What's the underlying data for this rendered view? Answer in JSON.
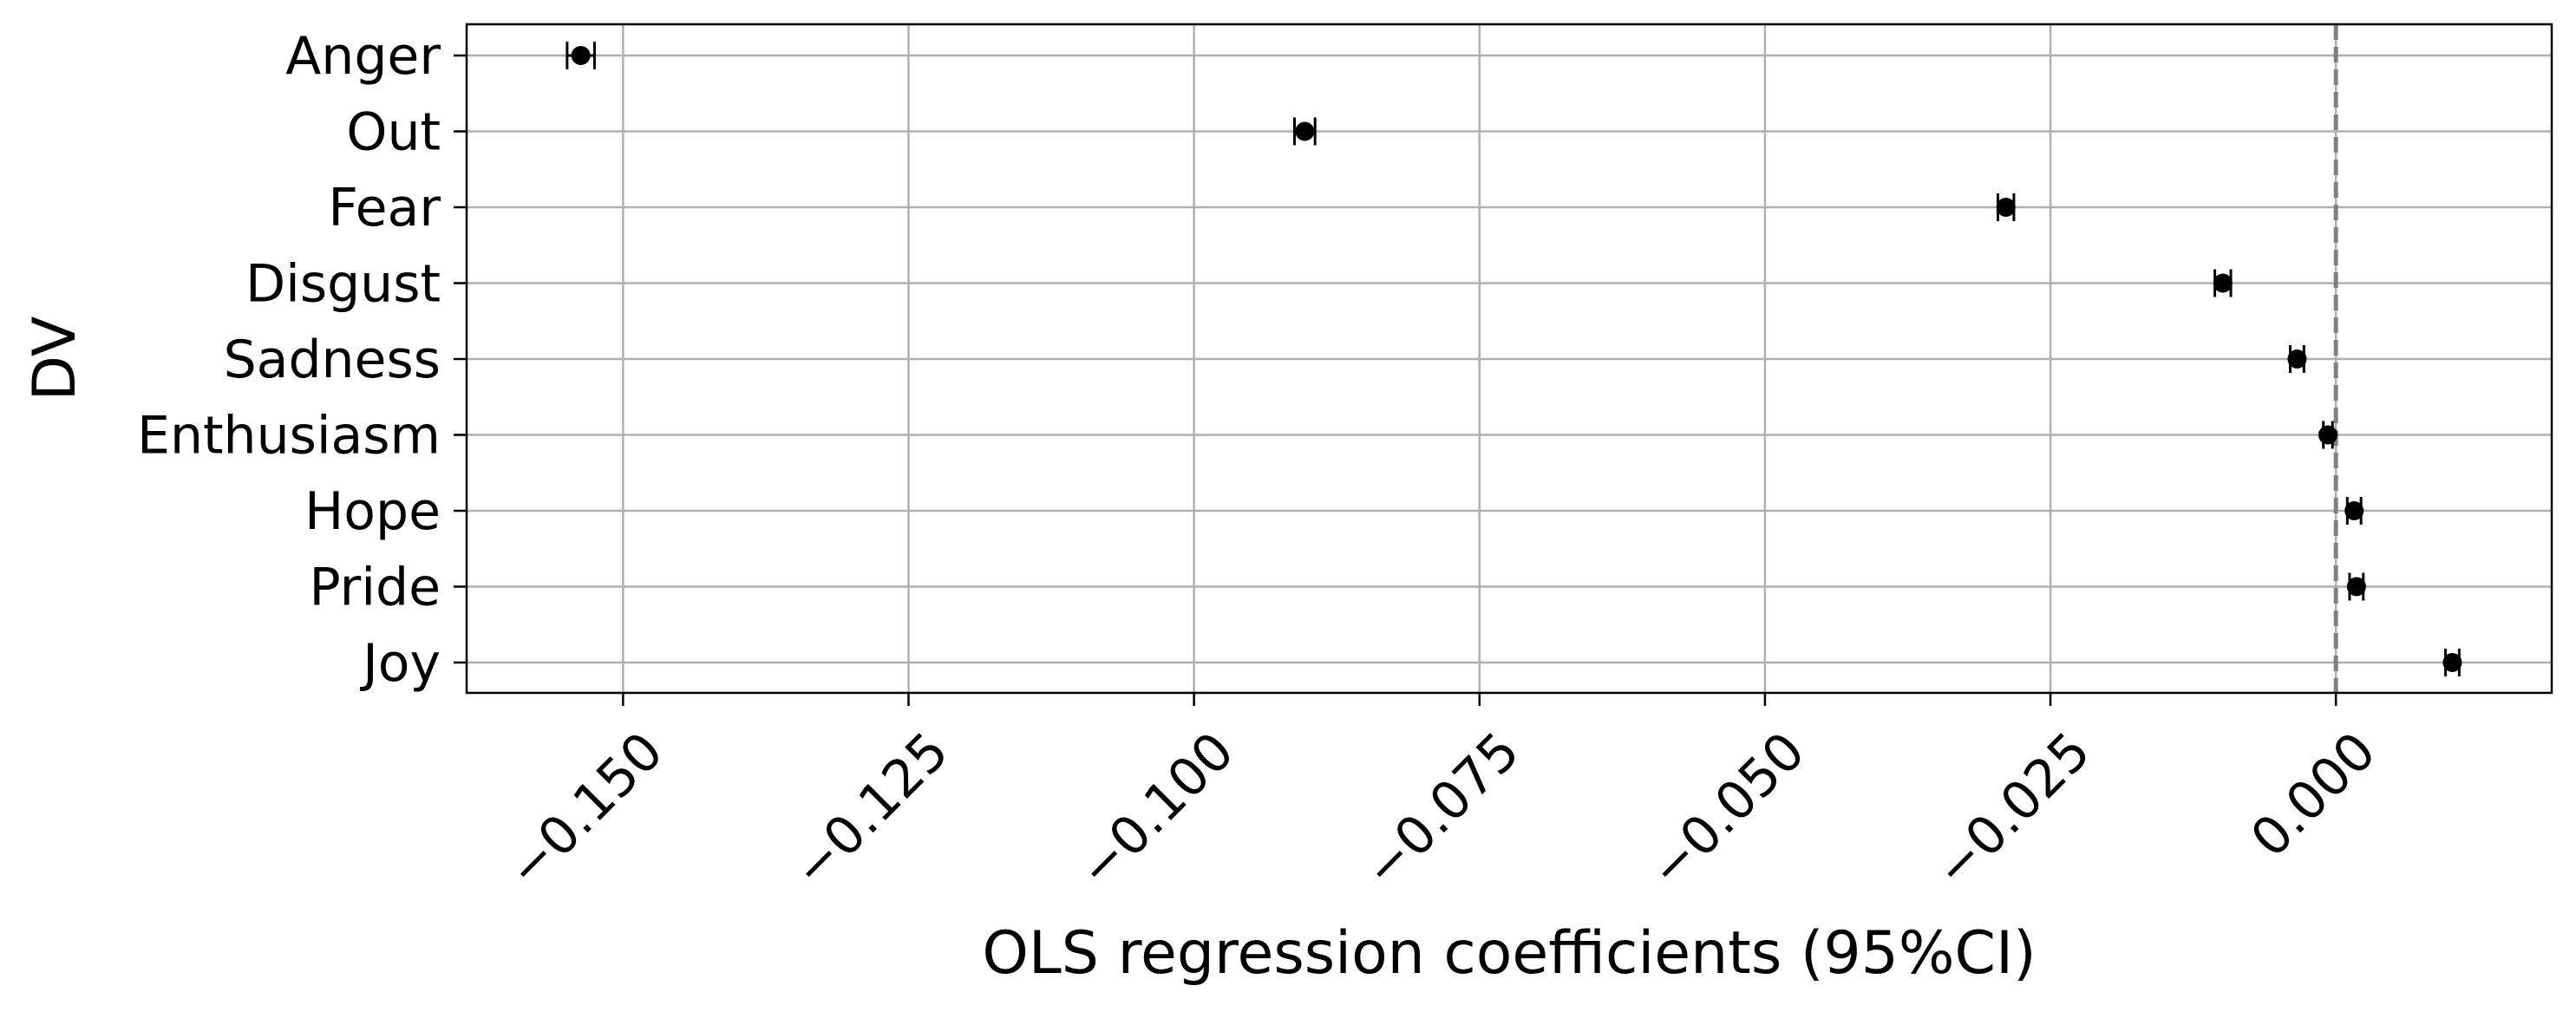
{
  "chart_data": {
    "type": "scatter",
    "title": "",
    "xlabel": "OLS regression coefficients (95%CI)",
    "ylabel": "DV",
    "xlim": [
      -0.1637,
      0.0189
    ],
    "x_ticks": [
      "−0.150",
      "−0.125",
      "−0.100",
      "−0.075",
      "−0.050",
      "−0.025",
      "0.000"
    ],
    "x_tick_values": [
      -0.15,
      -0.125,
      -0.1,
      -0.075,
      -0.05,
      -0.025,
      0.0
    ],
    "grid": true,
    "reference_line": 0.0,
    "categories": [
      "Anger",
      "Out",
      "Fear",
      "Disgust",
      "Sadness",
      "Enthusiasm",
      "Hope",
      "Pride",
      "Joy"
    ],
    "series": [
      {
        "estimates": [
          -0.1537,
          -0.0903,
          -0.0289,
          -0.0099,
          -0.0034,
          -0.0007,
          0.0016,
          0.0018,
          0.0102
        ],
        "ci_low": [
          -0.1549,
          -0.0912,
          -0.0296,
          -0.0106,
          -0.004,
          -0.0011,
          0.001,
          0.0012,
          0.0096
        ],
        "ci_high": [
          -0.1525,
          -0.0894,
          -0.0282,
          -0.0092,
          -0.0028,
          -0.0003,
          0.0022,
          0.0024,
          0.0108
        ]
      }
    ]
  }
}
